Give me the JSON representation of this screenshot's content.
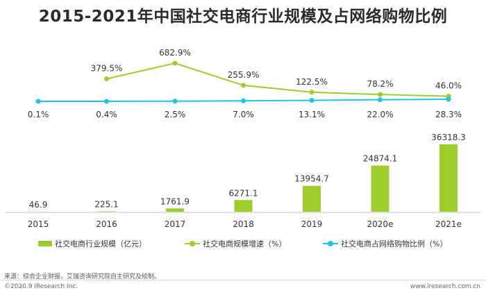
{
  "title": "2015-2021年中国社交电商行业规模及占网络购物比例",
  "chart_data": {
    "type": "bar",
    "categories": [
      "2015",
      "2016",
      "2017",
      "2018",
      "2019",
      "2020e",
      "2021e"
    ],
    "series": [
      {
        "name": "社交电商行业规模（亿元）",
        "type": "bar",
        "values": [
          46.9,
          225.1,
          1761.9,
          6271.1,
          13954.7,
          24874.1,
          36318.3
        ],
        "labels": [
          "46.9",
          "225.1",
          "1761.9",
          "6271.1",
          "13954.7",
          "24874.1",
          "36318.3"
        ],
        "color": "#9ccd2b"
      },
      {
        "name": "社交电商规模增速（%）",
        "type": "line",
        "values": [
          null,
          379.5,
          682.9,
          255.9,
          122.5,
          78.2,
          46.0
        ],
        "labels": [
          "",
          "379.5%",
          "682.9%",
          "255.9%",
          "122.5%",
          "78.2%",
          "46.0%"
        ],
        "color": "#9ccd2b"
      },
      {
        "name": "社交电商占网络购物比例（%）",
        "type": "line",
        "values": [
          0.1,
          0.4,
          2.5,
          7.0,
          13.1,
          22.0,
          28.3
        ],
        "labels": [
          "0.1%",
          "0.4%",
          "2.5%",
          "7.0%",
          "13.1%",
          "22.0%",
          "28.3%"
        ],
        "color": "#1ec3e6"
      }
    ]
  },
  "source": "来源：综合企业财报，艾瑞咨询研究院自主研究及绘制。",
  "copyright": "©2020.9 iResearch Inc.",
  "website": "www.iresearch.com.cn"
}
